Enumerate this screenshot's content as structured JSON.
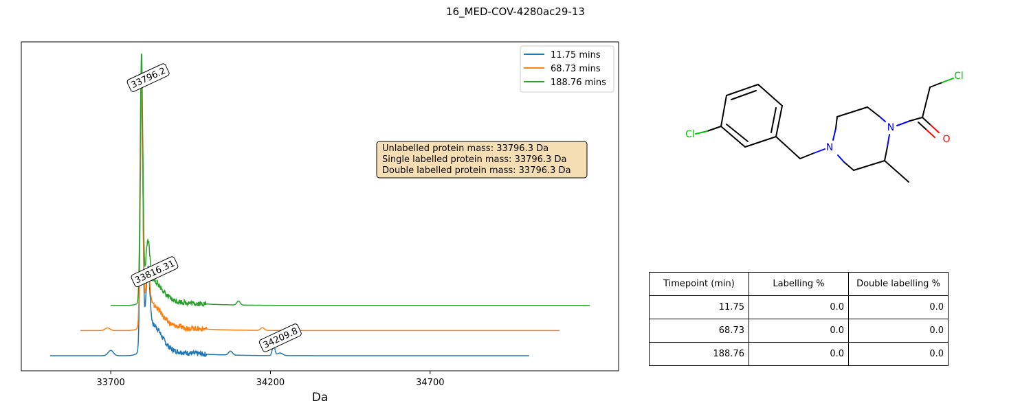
{
  "figure": {
    "title": "16_MED-COV-4280ac29-13"
  },
  "chart_data": {
    "type": "line",
    "title": "",
    "xlabel": "Da",
    "ylabel": "",
    "xticks": [
      33700,
      34200,
      34700
    ],
    "xlim": [
      33420,
      35290
    ],
    "grid": false,
    "legend_position": "top-right",
    "series": [
      {
        "name": "11.75 mins",
        "color": "#1f77b4",
        "offset": 0,
        "x_range": [
          33510,
          35010
        ],
        "peaks": [
          {
            "x": 33796.3,
            "height": 1.0,
            "width": 4
          },
          {
            "x": 33816.3,
            "height": 0.23,
            "width": 6
          },
          {
            "x": 33835,
            "height": 0.08,
            "width": 25
          },
          {
            "x": 33700,
            "height": 0.02,
            "width": 8
          },
          {
            "x": 34075,
            "height": 0.015,
            "width": 6
          },
          {
            "x": 34209.8,
            "height": 0.04,
            "width": 4
          },
          {
            "x": 34230,
            "height": 0.01,
            "width": 8
          }
        ],
        "annotations": [
          {
            "x": 33796.2,
            "label": "33796.2"
          },
          {
            "x": 33816.31,
            "label": "33816.31"
          },
          {
            "x": 34209.8,
            "label": "34209.8"
          }
        ]
      },
      {
        "name": "68.73 mins",
        "color": "#ff7f0e",
        "offset": 0.095,
        "x_range": [
          33605,
          35105
        ],
        "peaks": [
          {
            "x": 33796.3,
            "height": 0.91,
            "width": 4
          },
          {
            "x": 33816.3,
            "height": 0.14,
            "width": 6
          },
          {
            "x": 33835,
            "height": 0.06,
            "width": 25
          },
          {
            "x": 33690,
            "height": 0.01,
            "width": 8
          },
          {
            "x": 34175,
            "height": 0.01,
            "width": 6
          }
        ],
        "annotations": []
      },
      {
        "name": "188.76 mins",
        "color": "#2ca02c",
        "offset": 0.19,
        "x_range": [
          33700,
          35200
        ],
        "peaks": [
          {
            "x": 33796.3,
            "height": 0.94,
            "width": 4
          },
          {
            "x": 33816.3,
            "height": 0.16,
            "width": 6
          },
          {
            "x": 33835,
            "height": 0.06,
            "width": 25
          },
          {
            "x": 34100,
            "height": 0.015,
            "width": 5
          }
        ],
        "annotations": []
      }
    ],
    "info_box": {
      "lines": [
        "Unlabelled protein mass: 33796.3 Da",
        "Single labelled protein mass: 33796.3 Da",
        "Double labelled protein mass: 33796.3 Da"
      ],
      "background": "#f5deb3"
    }
  },
  "molecule": {
    "atoms": {
      "cl1": "Cl",
      "cl2": "Cl",
      "n1": "N",
      "n2": "N",
      "o": "O"
    }
  },
  "table": {
    "headers": [
      "Timepoint (min)",
      "Labelling %",
      "Double labelling %"
    ],
    "rows": [
      [
        "11.75",
        "0.0",
        "0.0"
      ],
      [
        "68.73",
        "0.0",
        "0.0"
      ],
      [
        "188.76",
        "0.0",
        "0.0"
      ]
    ]
  }
}
